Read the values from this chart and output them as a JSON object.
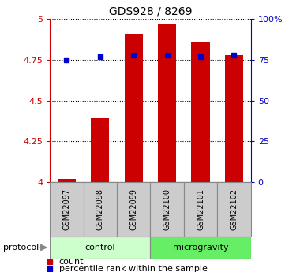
{
  "title": "GDS928 / 8269",
  "samples": [
    "GSM22097",
    "GSM22098",
    "GSM22099",
    "GSM22100",
    "GSM22101",
    "GSM22102"
  ],
  "count_values": [
    4.02,
    4.39,
    4.91,
    4.97,
    4.86,
    4.78
  ],
  "percentile_values": [
    4.75,
    4.77,
    4.78,
    4.78,
    4.77,
    4.78
  ],
  "ylim": [
    4.0,
    5.0
  ],
  "yticks_left": [
    4.0,
    4.25,
    4.5,
    4.75,
    5.0
  ],
  "ytick_labels_left": [
    "4",
    "4.25",
    "4.5",
    "4.75",
    "5"
  ],
  "ytick_labels_right": [
    "0",
    "25",
    "50",
    "75",
    "100%"
  ],
  "bar_color": "#cc0000",
  "dot_color": "#0000cc",
  "bar_width": 0.55,
  "control_label": "control",
  "microgravity_label": "microgravity",
  "protocol_label": "protocol",
  "legend_count": "count",
  "legend_percentile": "percentile rank within the sample",
  "control_color": "#ccffcc",
  "microgravity_color": "#66ee66",
  "sample_box_color": "#cccccc",
  "base_value": 4.0,
  "figsize": [
    3.61,
    3.45
  ],
  "dpi": 100
}
